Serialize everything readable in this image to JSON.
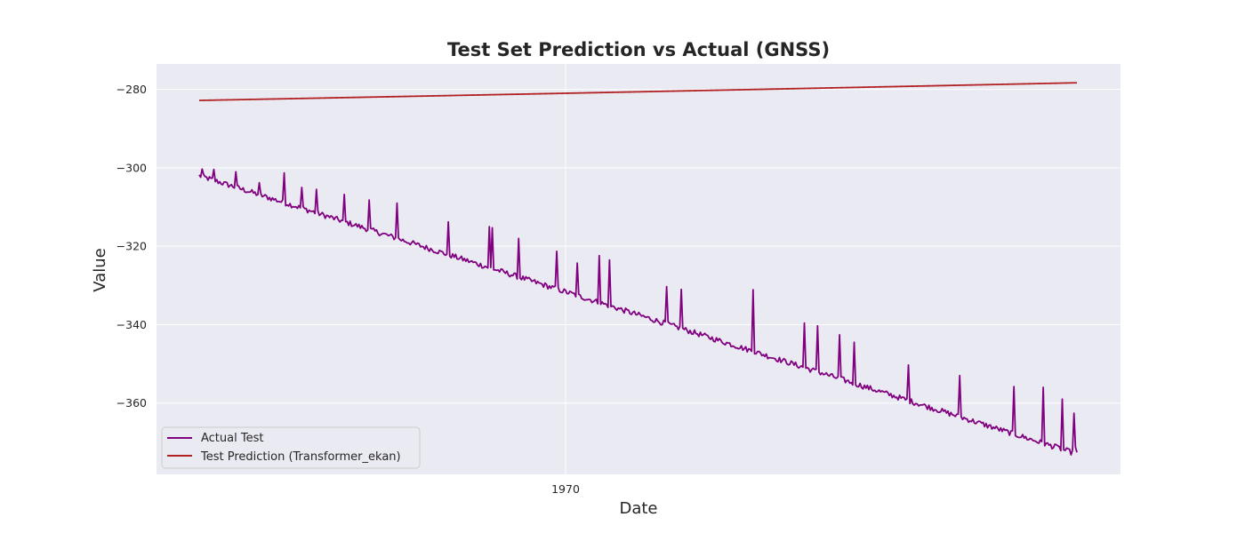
{
  "chart_data": {
    "type": "line",
    "title": "Test Set Prediction vs Actual (GNSS)",
    "xlabel": "Date",
    "ylabel": "Value",
    "x_ticks": [
      "1970"
    ],
    "y_ticks": [
      -280,
      -300,
      -320,
      -340,
      -360
    ],
    "ylim": [
      -378.2,
      -273.5
    ],
    "grid": true,
    "legend_position": "lower-left",
    "series": [
      {
        "name": "Actual Test",
        "color": "#800080",
        "trend_start": -302.0,
        "trend_end": -373.0,
        "n_points": 600,
        "spikes": [
          {
            "t": 0.003,
            "v": -300.3
          },
          {
            "t": 0.017,
            "v": -300.4
          },
          {
            "t": 0.042,
            "v": -301.0
          },
          {
            "t": 0.069,
            "v": -303.8
          },
          {
            "t": 0.096,
            "v": -301.3
          },
          {
            "t": 0.117,
            "v": -305.0
          },
          {
            "t": 0.134,
            "v": -305.5
          },
          {
            "t": 0.165,
            "v": -306.8
          },
          {
            "t": 0.193,
            "v": -308.2
          },
          {
            "t": 0.225,
            "v": -309.0
          },
          {
            "t": 0.283,
            "v": -313.8
          },
          {
            "t": 0.33,
            "v": -315.0
          },
          {
            "t": 0.334,
            "v": -315.3
          },
          {
            "t": 0.364,
            "v": -318.0
          },
          {
            "t": 0.407,
            "v": -321.3
          },
          {
            "t": 0.456,
            "v": -321.5
          },
          {
            "t": 0.468,
            "v": -323.5
          },
          {
            "t": 0.43,
            "v": -324.3
          },
          {
            "t": 0.533,
            "v": -330.3
          },
          {
            "t": 0.456,
            "v": -322.4
          },
          {
            "t": 0.549,
            "v": -331.0
          },
          {
            "t": 0.631,
            "v": -331.1
          },
          {
            "t": 0.689,
            "v": -339.6
          },
          {
            "t": 0.704,
            "v": -340.3
          },
          {
            "t": 0.73,
            "v": -342.6
          },
          {
            "t": 0.747,
            "v": -344.5
          },
          {
            "t": 0.808,
            "v": -350.3
          },
          {
            "t": 0.866,
            "v": -353.0
          },
          {
            "t": 0.929,
            "v": -355.8
          },
          {
            "t": 0.962,
            "v": -356.0
          },
          {
            "t": 0.983,
            "v": -359.0
          },
          {
            "t": 0.996,
            "v": -362.6
          },
          {
            "t": 0.975,
            "v": -370.5
          },
          {
            "t": 0.998,
            "v": -371.2
          }
        ]
      },
      {
        "name": "Test Prediction (Transformer_ekan)",
        "color": "#b22222",
        "trend_start": -282.8,
        "trend_end": -278.3,
        "n_points": 600
      }
    ]
  }
}
